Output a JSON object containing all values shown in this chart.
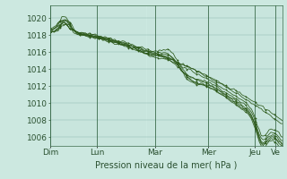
{
  "background_color": "#cce8e0",
  "plot_bg_color": "#cce8e0",
  "line_color": "#2d5a1b",
  "grid_minor_color": "#b5d9d0",
  "grid_major_color": "#9dc4bb",
  "day_sep_color": "#3a6b4a",
  "ylabel_text": "Pression niveau de la mer( hPa )",
  "ylim": [
    1005.0,
    1021.5
  ],
  "yticks": [
    1006,
    1008,
    1010,
    1012,
    1014,
    1016,
    1018,
    1020
  ],
  "x_days": [
    "Dim",
    "Lun",
    "Mar",
    "Mer",
    "Jeu",
    "Ve"
  ],
  "day_tick_positions": [
    0,
    0.2,
    0.45,
    0.68,
    0.88,
    0.97
  ],
  "num_points": 120,
  "tick_color": "#2a5030",
  "label_fontsize": 6.5,
  "xlabel_fontsize": 7.0
}
